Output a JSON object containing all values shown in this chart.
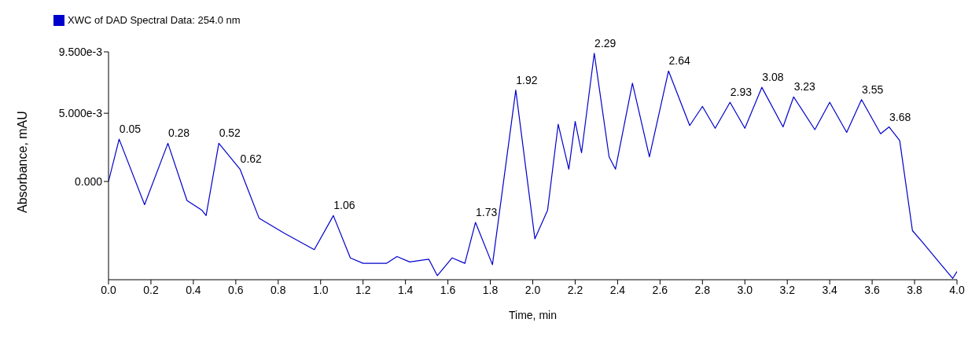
{
  "chart_data": {
    "type": "line",
    "xlabel": "Time, min",
    "ylabel": "Absorbance, mAU",
    "legend": "top left",
    "marker": "none",
    "grid": false,
    "xlim": [
      0,
      4
    ],
    "xticks": [
      {
        "value": 0,
        "label": "0.0"
      },
      0.2,
      0.4,
      0.6,
      0.8,
      {
        "value": 1,
        "label": "1.0"
      },
      1.2,
      1.4,
      1.6,
      1.8,
      {
        "value": 2,
        "label": "2.0"
      },
      2.2,
      2.4,
      2.6,
      2.8,
      {
        "value": 3,
        "label": "3.0"
      },
      3.2,
      3.4,
      3.6,
      3.8,
      {
        "value": 4,
        "label": "4.0"
      }
    ],
    "ylim": [
      -0.0072,
      0.0095
    ],
    "yticks": [
      {
        "value": 0,
        "label": "0.000"
      },
      {
        "value": 0.005,
        "label": "5.000e-3"
      },
      {
        "value": 0.0095,
        "label": "9.500e-3"
      }
    ],
    "x": [
      0,
      0.05,
      0.17,
      0.28,
      0.37,
      0.44,
      0.46,
      0.52,
      0.62,
      0.71,
      0.83,
      0.97,
      1.06,
      1.14,
      1.2,
      1.31,
      1.36,
      1.42,
      1.51,
      1.55,
      1.62,
      1.68,
      1.73,
      1.81,
      1.92,
      2.01,
      2.07,
      2.12,
      2.17,
      2.2,
      2.23,
      2.29,
      2.36,
      2.39,
      2.47,
      2.55,
      2.64,
      2.74,
      2.8,
      2.86,
      2.93,
      3,
      3.08,
      3.18,
      3.23,
      3.33,
      3.4,
      3.48,
      3.55,
      3.64,
      3.68,
      3.73,
      3.79,
      3.84,
      3.92,
      3.98,
      4
    ],
    "series": [
      {
        "name": "XWC of DAD Spectral Data: 254.0 nm",
        "color": "#0000cc",
        "values": [
          0,
          0.0031,
          -0.0017,
          0.0028,
          -0.0014,
          -0.0021,
          -0.0025,
          0.0028,
          0.0009,
          -0.0027,
          -0.0038,
          -0.005,
          -0.0025,
          -0.0056,
          -0.006,
          -0.006,
          -0.0055,
          -0.0059,
          -0.0057,
          -0.0069,
          -0.0056,
          -0.006,
          -0.003,
          -0.0061,
          0.0067,
          -0.0042,
          -0.0021,
          0.0042,
          0.0009,
          0.0044,
          0.0021,
          0.0094,
          0.0018,
          0.0009,
          0.0072,
          0.0018,
          0.0081,
          0.0041,
          0.0055,
          0.0039,
          0.0058,
          0.0039,
          0.0069,
          0.004,
          0.0062,
          0.0038,
          0.0058,
          0.0036,
          0.006,
          0.0035,
          0.004,
          0.003,
          -0.0036,
          -0.0045,
          -0.006,
          -0.0071,
          -0.0066
        ]
      }
    ],
    "annotations": [
      {
        "text": "0.05",
        "x": 0.05,
        "y": 0.0031
      },
      {
        "text": "0.28",
        "x": 0.28,
        "y": 0.0028
      },
      {
        "text": "0.52",
        "x": 0.52,
        "y": 0.0028
      },
      {
        "text": "0.62",
        "x": 0.62,
        "y": 0.0009
      },
      {
        "text": "1.06",
        "x": 1.06,
        "y": -0.0025
      },
      {
        "text": "1.73",
        "x": 1.73,
        "y": -0.003
      },
      {
        "text": "1.92",
        "x": 1.92,
        "y": 0.0067
      },
      {
        "text": "2.29",
        "x": 2.29,
        "y": 0.0094
      },
      {
        "text": "2.64",
        "x": 2.64,
        "y": 0.0081
      },
      {
        "text": "2.93",
        "x": 2.93,
        "y": 0.0058
      },
      {
        "text": "3.08",
        "x": 3.08,
        "y": 0.0069
      },
      {
        "text": "3.23",
        "x": 3.23,
        "y": 0.0062
      },
      {
        "text": "3.55",
        "x": 3.55,
        "y": 0.006
      },
      {
        "text": "3.68",
        "x": 3.68,
        "y": 0.004
      }
    ]
  }
}
